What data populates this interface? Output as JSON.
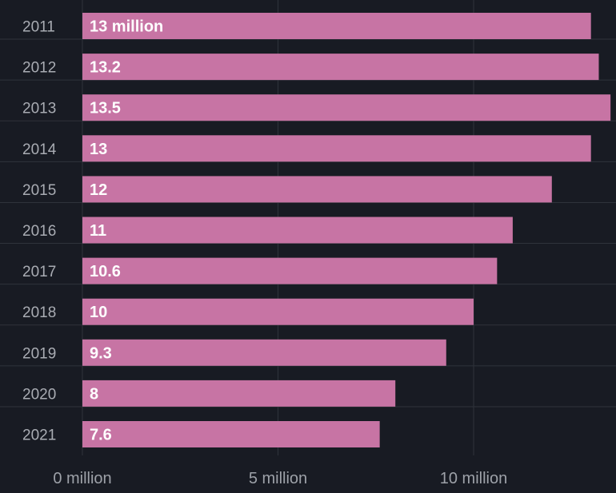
{
  "chart_data": {
    "type": "bar",
    "orientation": "horizontal",
    "categories": [
      "2011",
      "2012",
      "2013",
      "2014",
      "2015",
      "2016",
      "2017",
      "2018",
      "2019",
      "2020",
      "2021"
    ],
    "values": [
      13,
      13.2,
      13.5,
      13,
      12,
      11,
      10.6,
      10,
      9.3,
      8,
      7.6
    ],
    "data_labels": [
      "13 million",
      "13.2",
      "13.5",
      "13",
      "12",
      "11",
      "10.6",
      "10",
      "9.3",
      "8",
      "7.6"
    ],
    "x_ticks": [
      {
        "value": 0,
        "label": "0 million"
      },
      {
        "value": 5,
        "label": "5 million"
      },
      {
        "value": 10,
        "label": "10 million"
      }
    ],
    "xlim": [
      0,
      13.5
    ],
    "title": "",
    "xlabel": "",
    "ylabel": "",
    "grid": true,
    "legend": "none",
    "colors": {
      "background": "#181b23",
      "bar": "#c774a4",
      "grid": "#2f333b",
      "category_text": "#a9acb3",
      "value_text": "#ffffff",
      "tick_text": "#9da1a8"
    }
  }
}
